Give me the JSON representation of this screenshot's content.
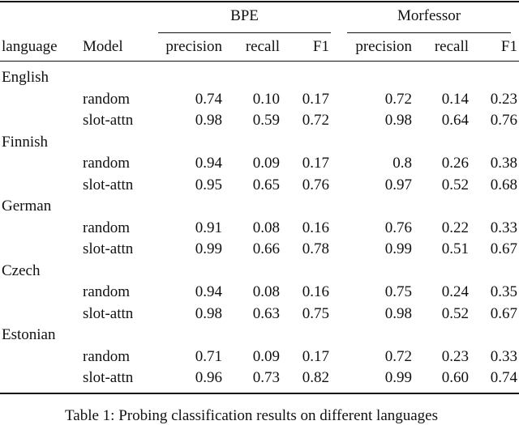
{
  "table": {
    "groups": [
      "BPE",
      "Morfessor"
    ],
    "columns": [
      "language",
      "Model",
      "precision",
      "recall",
      "F1",
      "precision",
      "recall",
      "F1"
    ],
    "languages": [
      {
        "name": "English",
        "rows": [
          {
            "model": "random",
            "values": [
              "0.74",
              "0.10",
              "0.17",
              "0.72",
              "0.14",
              "0.23"
            ]
          },
          {
            "model": "slot-attn",
            "values": [
              "0.98",
              "0.59",
              "0.72",
              "0.98",
              "0.64",
              "0.76"
            ]
          }
        ]
      },
      {
        "name": "Finnish",
        "rows": [
          {
            "model": "random",
            "values": [
              "0.94",
              "0.09",
              "0.17",
              "0.8",
              "0.26",
              "0.38"
            ]
          },
          {
            "model": "slot-attn",
            "values": [
              "0.95",
              "0.65",
              "0.76",
              "0.97",
              "0.52",
              "0.68"
            ]
          }
        ]
      },
      {
        "name": "German",
        "rows": [
          {
            "model": "random",
            "values": [
              "0.91",
              "0.08",
              "0.16",
              "0.76",
              "0.22",
              "0.33"
            ]
          },
          {
            "model": "slot-attn",
            "values": [
              "0.99",
              "0.66",
              "0.78",
              "0.99",
              "0.51",
              "0.67"
            ]
          }
        ]
      },
      {
        "name": "Czech",
        "rows": [
          {
            "model": "random",
            "values": [
              "0.94",
              "0.08",
              "0.16",
              "0.75",
              "0.24",
              "0.35"
            ]
          },
          {
            "model": "slot-attn",
            "values": [
              "0.98",
              "0.63",
              "0.75",
              "0.98",
              "0.52",
              "0.67"
            ]
          }
        ]
      },
      {
        "name": "Estonian",
        "rows": [
          {
            "model": "random",
            "values": [
              "0.71",
              "0.09",
              "0.17",
              "0.72",
              "0.23",
              "0.33"
            ]
          },
          {
            "model": "slot-attn",
            "values": [
              "0.96",
              "0.73",
              "0.82",
              "0.99",
              "0.60",
              "0.74"
            ]
          }
        ]
      }
    ]
  },
  "caption": "Table 1: Probing classification results on different languages"
}
